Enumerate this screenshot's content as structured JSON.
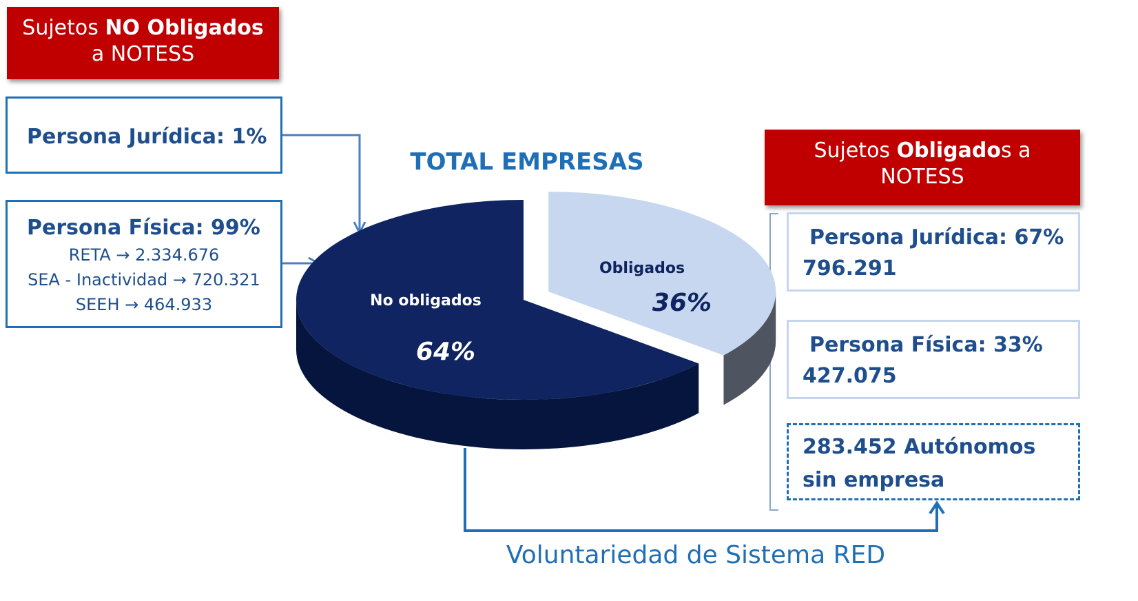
{
  "chart_data": {
    "type": "pie",
    "title": "TOTAL EMPRESAS",
    "categories": [
      "No obligados",
      "Obligados"
    ],
    "values": [
      64,
      36
    ],
    "value_labels": [
      "64%",
      "36%"
    ],
    "colors": [
      "#0f2460",
      "#c6d7ef"
    ]
  },
  "left": {
    "header": [
      "Sujetos",
      "NO Obligados",
      "a NOTESS"
    ],
    "juridica": "Persona Jurídica: 1%",
    "fisica": {
      "title": "Persona Física: 99%",
      "lines": [
        "RETA → 2.334.676",
        "SEA - Inactividad → 720.321",
        "SEEH → 464.933"
      ]
    }
  },
  "right": {
    "header": [
      "Sujetos",
      "Obligado",
      "s a",
      "NOTESS"
    ],
    "juridica": [
      "Persona Jurídica: 67%",
      "796.291"
    ],
    "fisica": [
      "Persona Física: 33%",
      "427.075"
    ],
    "autonomos": "283.452 Autónomos sin empresa"
  },
  "footer": "Voluntariedad de Sistema RED"
}
